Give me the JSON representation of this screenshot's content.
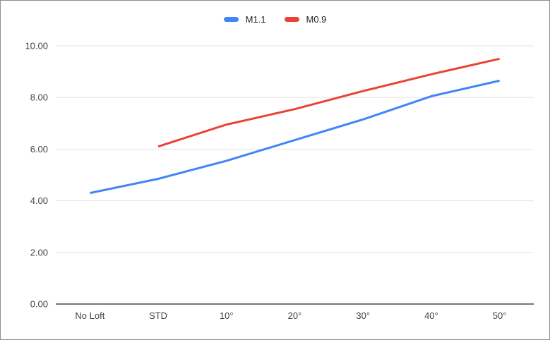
{
  "chart_data": {
    "type": "line",
    "title": "",
    "xlabel": "",
    "ylabel": "",
    "categories": [
      "No Loft",
      "STD",
      "10°",
      "20°",
      "30°",
      "40°",
      "50°"
    ],
    "series": [
      {
        "name": "M1.1",
        "color": "#4285F4",
        "values": [
          4.3,
          4.85,
          5.55,
          6.35,
          7.15,
          8.05,
          8.65
        ]
      },
      {
        "name": "M0.9",
        "color": "#EA4335",
        "values": [
          null,
          6.1,
          6.95,
          7.55,
          8.25,
          8.9,
          9.5
        ]
      }
    ],
    "ylim": [
      0,
      10
    ],
    "y_ticks": [
      {
        "value": 0,
        "label": "0.00"
      },
      {
        "value": 2,
        "label": "2.00"
      },
      {
        "value": 4,
        "label": "4.00"
      },
      {
        "value": 6,
        "label": "6.00"
      },
      {
        "value": 8,
        "label": "8.00"
      },
      {
        "value": 10,
        "label": "10.00"
      }
    ],
    "legend_position": "top",
    "grid": true,
    "colors": {
      "gridline": "#e3e3e3",
      "axis_line": "#757575",
      "tick_label": "#434343",
      "legend_text": "#202124",
      "background": "#ffffff",
      "frame_border": "#8f8f8f"
    }
  }
}
